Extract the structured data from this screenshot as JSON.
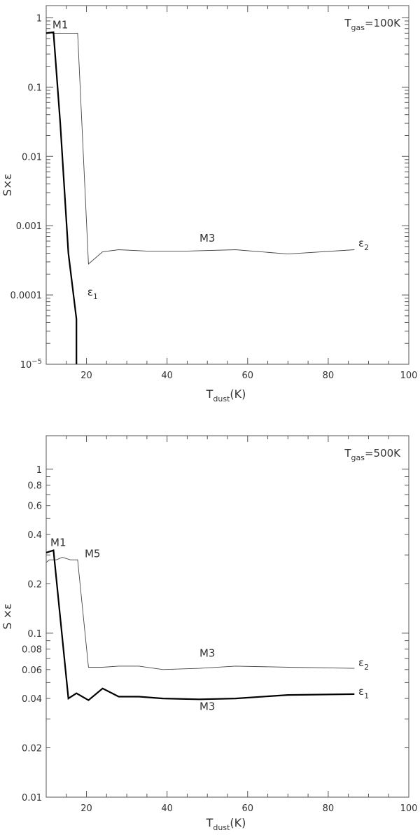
{
  "chart_data": [
    {
      "type": "line",
      "panel": "top",
      "yscale": "log",
      "xlim": [
        10,
        100
      ],
      "ylim": [
        1e-05,
        1.5
      ],
      "xticks": [
        20,
        40,
        60,
        80,
        100
      ],
      "yticks": [
        {
          "value": 1,
          "label": "1"
        },
        {
          "value": 0.1,
          "label": "0.1"
        },
        {
          "value": 0.01,
          "label": "0.01"
        },
        {
          "value": 0.001,
          "label": "0.001"
        },
        {
          "value": 0.0001,
          "label": "0.0001"
        },
        {
          "value": 1e-05,
          "label": "10",
          "sup": "−5"
        }
      ],
      "ylabel": "S×ε",
      "xlabel_main": "T",
      "xlabel_sub": "dust",
      "xlabel_rest": "(K)",
      "gas_label_main": "T",
      "gas_label_sub": "gas",
      "gas_label_rest": "=100K",
      "series": [
        {
          "style": "thin",
          "x": [
            10,
            10.6,
            11.5,
            13,
            16,
            17.8,
            20.5,
            24,
            28,
            35,
            45,
            57,
            70,
            86.5
          ],
          "y": [
            0.6,
            0.62,
            0.6,
            0.6,
            0.6,
            0.6,
            0.00028,
            0.00042,
            0.00045,
            0.00043,
            0.00043,
            0.00045,
            0.00039,
            0.00045
          ]
        },
        {
          "style": "thick",
          "x": [
            10,
            11.8,
            13.5,
            15.5,
            17.5,
            17.5
          ],
          "y": [
            0.6,
            0.62,
            0.03,
            0.0004,
            4.5e-05,
            1e-05
          ]
        }
      ],
      "annotations": [
        {
          "text": "M1",
          "x": 13.5,
          "y": 0.7
        },
        {
          "text": "M3",
          "x": 50,
          "y": 0.00059
        },
        {
          "text": "ε",
          "sub": "2",
          "x": 87.5,
          "y": 0.0005
        },
        {
          "text": "ε",
          "sub": "1",
          "x": 20.2,
          "y": 9.8e-05
        }
      ]
    },
    {
      "type": "line",
      "panel": "bottom",
      "yscale": "log",
      "xlim": [
        10,
        100
      ],
      "ylim": [
        0.01,
        1.6
      ],
      "xticks": [
        20,
        40,
        60,
        80,
        100
      ],
      "yticks": [
        {
          "value": 1,
          "label": "1"
        },
        {
          "value": 0.8,
          "label": "0.8"
        },
        {
          "value": 0.6,
          "label": "0.6"
        },
        {
          "value": 0.4,
          "label": "0.4"
        },
        {
          "value": 0.2,
          "label": "0.2"
        },
        {
          "value": 0.1,
          "label": "0.1"
        },
        {
          "value": 0.08,
          "label": "0.08"
        },
        {
          "value": 0.06,
          "label": "0.06"
        },
        {
          "value": 0.04,
          "label": "0.04"
        },
        {
          "value": 0.02,
          "label": "0.02"
        },
        {
          "value": 0.01,
          "label": "0.01"
        }
      ],
      "ylabel": "S ×ε",
      "xlabel_main": "T",
      "xlabel_sub": "dust",
      "xlabel_rest": "(K)",
      "gas_label_main": "T",
      "gas_label_sub": "gas",
      "gas_label_rest": "=500K",
      "series": [
        {
          "style": "thin",
          "x": [
            10,
            10.8,
            12.5,
            14,
            16,
            17.8,
            20.5,
            24,
            28,
            33,
            39,
            48,
            57,
            70,
            86.5
          ],
          "y": [
            0.27,
            0.28,
            0.28,
            0.29,
            0.28,
            0.28,
            0.062,
            0.062,
            0.063,
            0.063,
            0.06,
            0.061,
            0.063,
            0.062,
            0.061
          ]
        },
        {
          "style": "thick",
          "x": [
            10,
            11.8,
            15.5,
            17.5,
            20.5,
            24,
            28,
            33,
            39,
            48,
            57,
            70,
            86.5
          ],
          "y": [
            0.31,
            0.32,
            0.04,
            0.043,
            0.039,
            0.046,
            0.041,
            0.041,
            0.04,
            0.0395,
            0.04,
            0.042,
            0.0425
          ]
        }
      ],
      "annotations": [
        {
          "text": "M1",
          "x": 13,
          "y": 0.34
        },
        {
          "text": "M5",
          "x": 21.5,
          "y": 0.29
        },
        {
          "text": "M3",
          "x": 50,
          "y": 0.072
        },
        {
          "text": "ε",
          "sub": "2",
          "x": 87.5,
          "y": 0.063
        },
        {
          "text": "ε",
          "sub": "1",
          "x": 87.5,
          "y": 0.042
        },
        {
          "text": "M3",
          "x": 50,
          "y": 0.034
        }
      ]
    }
  ]
}
